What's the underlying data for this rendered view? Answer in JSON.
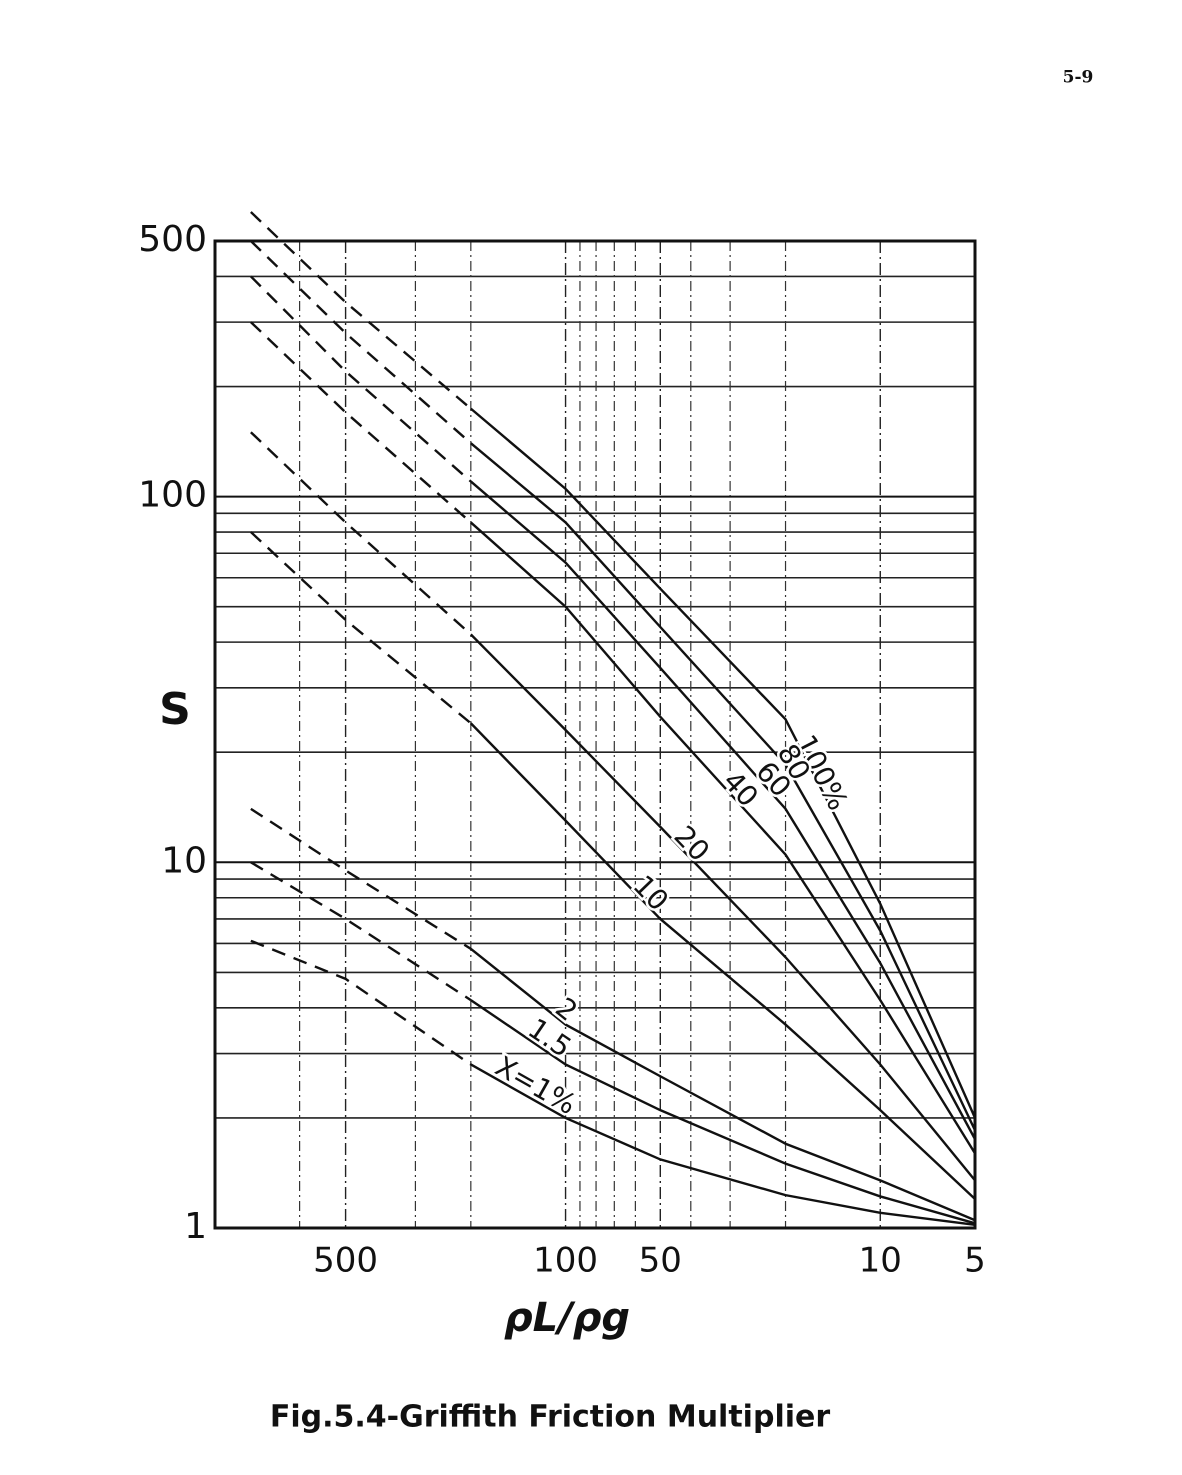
{
  "page_number": "5-9",
  "chart_data": {
    "type": "line",
    "title": "Fig.5.4-Griffith Friction Multiplier",
    "x_label": "ρL/ρg",
    "y_label": "S",
    "x": [
      1000,
      500,
      200,
      100,
      50,
      20,
      10,
      5
    ],
    "xlim": [
      1300,
      5
    ],
    "ylim": [
      1,
      500
    ],
    "log_x": true,
    "log_y": true,
    "xticks": [
      500,
      100,
      50,
      10,
      5
    ],
    "yticks": [
      1,
      10,
      100,
      500
    ],
    "x_minor_ticks": [
      700,
      300,
      200,
      90,
      80,
      70,
      60,
      40,
      30,
      20
    ],
    "y_minor_ticks": [
      2,
      3,
      4,
      5,
      6,
      7,
      8,
      9,
      20,
      30,
      40,
      50,
      60,
      70,
      80,
      90,
      200,
      300,
      400
    ],
    "grid": true,
    "dashed_above_x": 200,
    "color": "#111111",
    "series": [
      {
        "name": "100%",
        "values": [
          600,
          340,
          174,
          105,
          56,
          24.6,
          7.7,
          2.0
        ]
      },
      {
        "name": "80",
        "values": [
          500,
          280,
          140,
          85,
          44,
          18.5,
          6.5,
          1.85
        ]
      },
      {
        "name": "60",
        "values": [
          400,
          220,
          110,
          66,
          34,
          14,
          5.3,
          1.75
        ]
      },
      {
        "name": "40",
        "values": [
          300,
          170,
          85,
          50,
          25,
          10.5,
          4.2,
          1.6
        ]
      },
      {
        "name": "20",
        "values": [
          150,
          85,
          42,
          23,
          12.5,
          5.5,
          2.8,
          1.35
        ]
      },
      {
        "name": "10",
        "values": [
          80,
          46,
          24,
          13,
          7,
          3.6,
          2.1,
          1.2
        ]
      },
      {
        "name": "2",
        "values": [
          14,
          9.5,
          5.8,
          3.6,
          2.6,
          1.7,
          1.35,
          1.05
        ]
      },
      {
        "name": "1.5",
        "values": [
          10,
          7,
          4.2,
          2.8,
          2.1,
          1.5,
          1.22,
          1.03
        ]
      },
      {
        "name": "X=1%",
        "values": [
          6.1,
          4.8,
          2.8,
          2.0,
          1.54,
          1.23,
          1.1,
          1.02
        ]
      }
    ]
  }
}
